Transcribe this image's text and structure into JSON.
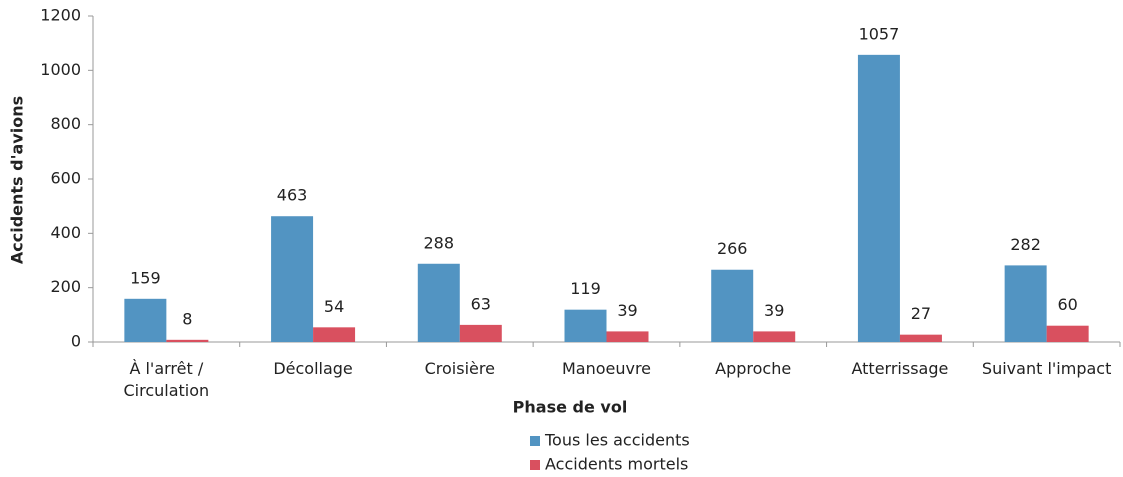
{
  "chart_data": {
    "type": "bar",
    "x_label": "Phase de vol",
    "y_label": "Accidents d'avions",
    "categories": [
      "À l'arrêt / Circulation",
      "Décollage",
      "Croisière",
      "Manoeuvre",
      "Approche",
      "Atterrissage",
      "Suivant l'impact"
    ],
    "series": [
      {
        "name": "Tous les accidents",
        "color": "#5294c2",
        "values": [
          159,
          463,
          288,
          119,
          266,
          1057,
          282
        ]
      },
      {
        "name": "Accidents mortels",
        "color": "#d9505f",
        "values": [
          8,
          54,
          63,
          39,
          39,
          27,
          60
        ]
      }
    ],
    "ylim": [
      0,
      1200
    ],
    "yticks": [
      0,
      200,
      400,
      600,
      800,
      1000,
      1200
    ],
    "legend": "bottom"
  }
}
